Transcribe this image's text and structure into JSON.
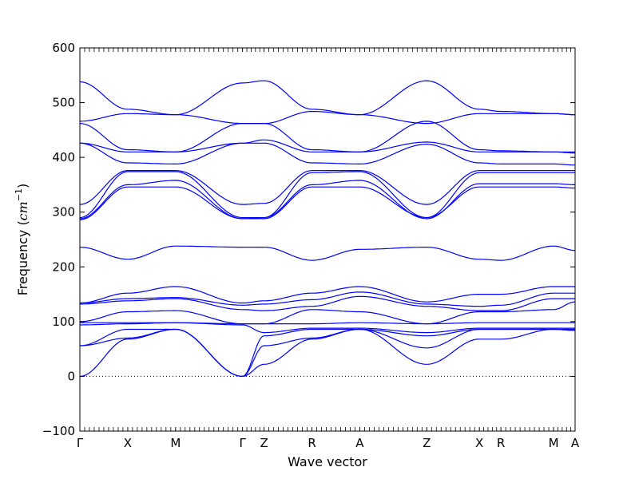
{
  "chart_data": {
    "type": "line",
    "title": "",
    "xlabel": "Wave vector",
    "ylabel_prefix": "Frequency (",
    "ylabel_unit": "cm",
    "ylabel_exp": "−1",
    "ylabel_suffix": ")",
    "ylim": [
      -100,
      600
    ],
    "yticks": [
      -100,
      0,
      100,
      200,
      300,
      400,
      500,
      600
    ],
    "ytick_labels": [
      "−100",
      "0",
      "100",
      "200",
      "300",
      "400",
      "500",
      "600"
    ],
    "zero_line": true,
    "grid": false,
    "line_color": "#0000ff",
    "frame_color": "#000000",
    "path_lengths": [
      1.0,
      1.0,
      1.4,
      0.45,
      1.0,
      1.0,
      1.4,
      1.1,
      0.45,
      1.1,
      0.45
    ],
    "high_symmetry_points": [
      {
        "label": "Γ",
        "idx": 0
      },
      {
        "label": "X",
        "idx": 1
      },
      {
        "label": "M",
        "idx": 2
      },
      {
        "label": "Γ",
        "idx": 3
      },
      {
        "label": "Z",
        "idx": 4
      },
      {
        "label": "R",
        "idx": 5
      },
      {
        "label": "A",
        "idx": 6
      },
      {
        "label": "Z",
        "idx": 7
      },
      {
        "label": "X",
        "idx": 8
      },
      {
        "label": "R",
        "idx": 9
      },
      {
        "label": "M",
        "idx": 10
      },
      {
        "label": "A",
        "idx": 11
      }
    ],
    "series": [
      {
        "values": [
          538,
          488,
          478,
          536,
          540,
          488,
          478,
          540,
          488,
          484,
          480,
          478
        ]
      },
      {
        "values": [
          466,
          480,
          478,
          462,
          462,
          484,
          478,
          462,
          480,
          480,
          480,
          478
        ]
      },
      {
        "values": [
          462,
          414,
          410,
          462,
          462,
          414,
          410,
          466,
          414,
          412,
          410,
          410
        ]
      },
      {
        "values": [
          426,
          410,
          410,
          426,
          432,
          410,
          410,
          428,
          410,
          410,
          410,
          408
        ]
      },
      {
        "values": [
          426,
          390,
          388,
          426,
          426,
          390,
          388,
          424,
          390,
          388,
          388,
          386
        ]
      },
      {
        "values": [
          314,
          376,
          376,
          314,
          316,
          376,
          376,
          314,
          376,
          376,
          376,
          376
        ]
      },
      {
        "values": [
          290,
          374,
          374,
          290,
          290,
          372,
          374,
          290,
          372,
          372,
          372,
          372
        ]
      },
      {
        "values": [
          288,
          350,
          358,
          288,
          290,
          350,
          358,
          288,
          352,
          352,
          352,
          350
        ]
      },
      {
        "values": [
          286,
          346,
          346,
          288,
          288,
          346,
          346,
          290,
          346,
          346,
          346,
          344
        ]
      },
      {
        "values": [
          236,
          214,
          238,
          236,
          236,
          212,
          232,
          236,
          214,
          212,
          238,
          230
        ]
      },
      {
        "values": [
          134,
          152,
          164,
          134,
          138,
          152,
          164,
          136,
          150,
          150,
          164,
          164
        ]
      },
      {
        "values": [
          134,
          142,
          144,
          130,
          132,
          140,
          154,
          132,
          128,
          130,
          152,
          152
        ]
      },
      {
        "values": [
          132,
          138,
          142,
          122,
          120,
          128,
          146,
          128,
          120,
          120,
          142,
          142
        ]
      },
      {
        "values": [
          100,
          118,
          120,
          96,
          96,
          122,
          118,
          96,
          118,
          118,
          122,
          136
        ]
      },
      {
        "values": [
          98,
          98,
          98,
          96,
          96,
          96,
          98,
          96,
          98,
          98,
          98,
          98
        ]
      },
      {
        "values": [
          94,
          96,
          98,
          94,
          80,
          88,
          88,
          80,
          88,
          88,
          88,
          88
        ]
      },
      {
        "values": [
          56,
          86,
          86,
          0,
          74,
          86,
          86,
          74,
          86,
          86,
          86,
          86
        ]
      },
      {
        "values": [
          56,
          70,
          86,
          0,
          56,
          70,
          86,
          52,
          86,
          86,
          86,
          84
        ]
      },
      {
        "values": [
          0,
          68,
          86,
          0,
          22,
          68,
          86,
          22,
          68,
          68,
          86,
          84
        ]
      }
    ]
  }
}
